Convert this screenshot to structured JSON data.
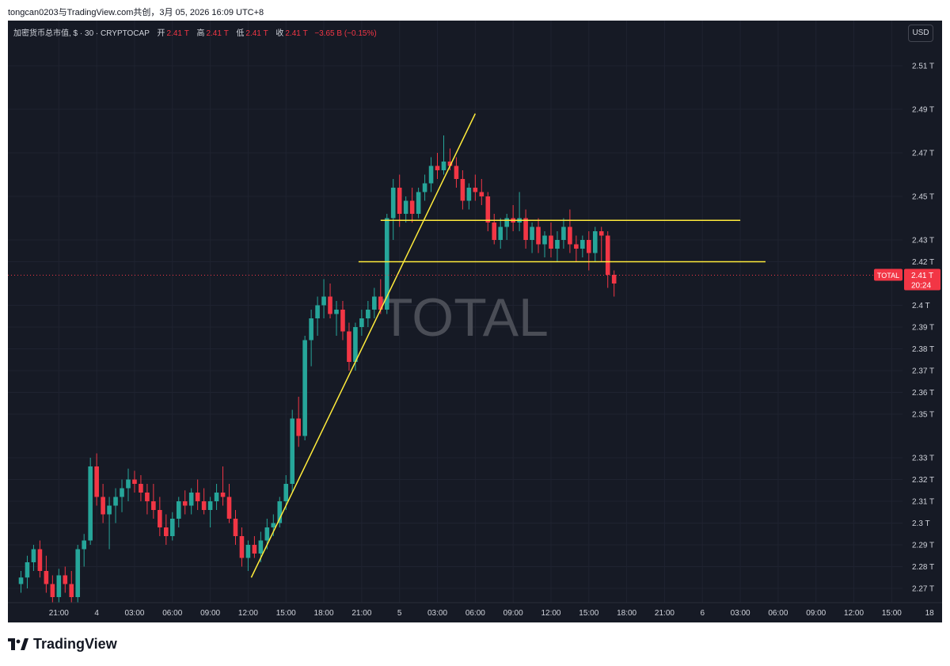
{
  "caption": "tongcan0203与TradingView.com共创，3月 05, 2026 16:09 UTC+8",
  "legend": {
    "symbol": "加密货币总市值, $ · 30 · CRYPTOCAP",
    "open_label": "开",
    "open": "2.41 T",
    "high_label": "高",
    "high": "2.41 T",
    "low_label": "低",
    "low": "2.41 T",
    "close_label": "收",
    "close": "2.41 T",
    "change": "−3.65 B (−0.15%)"
  },
  "currency_button": "USD",
  "watermark": "TOTAL",
  "current_price": {
    "tag": "TOTAL",
    "value": "2.41 T",
    "countdown": "20:24",
    "level": 2.4138
  },
  "brand": "TradingView",
  "colors": {
    "background": "#161a25",
    "up": "#26a69a",
    "down": "#f23645",
    "trendline": "#ffeb3b",
    "axis_text": "#d1d4dc"
  },
  "chart_data": {
    "type": "candlestick",
    "title": "",
    "y_unit": "T",
    "ylim": [
      2.265,
      2.517
    ],
    "y_ticks": [
      {
        "v": 2.51,
        "label": "2.51 T"
      },
      {
        "v": 2.49,
        "label": "2.49 T"
      },
      {
        "v": 2.47,
        "label": "2.47 T"
      },
      {
        "v": 2.45,
        "label": "2.45 T"
      },
      {
        "v": 2.43,
        "label": "2.43 T"
      },
      {
        "v": 2.42,
        "label": "2.42 T"
      },
      {
        "v": 2.4,
        "label": "2.4 T"
      },
      {
        "v": 2.39,
        "label": "2.39 T"
      },
      {
        "v": 2.38,
        "label": "2.38 T"
      },
      {
        "v": 2.37,
        "label": "2.37 T"
      },
      {
        "v": 2.36,
        "label": "2.36 T"
      },
      {
        "v": 2.35,
        "label": "2.35 T"
      },
      {
        "v": 2.33,
        "label": "2.33 T"
      },
      {
        "v": 2.32,
        "label": "2.32 T"
      },
      {
        "v": 2.31,
        "label": "2.31 T"
      },
      {
        "v": 2.3,
        "label": "2.3 T"
      },
      {
        "v": 2.29,
        "label": "2.29 T"
      },
      {
        "v": 2.28,
        "label": "2.28 T"
      },
      {
        "v": 2.27,
        "label": "2.27 T"
      }
    ],
    "interval_minutes": 30,
    "x_start": "3月 3 日 18:00",
    "x_ticks": [
      {
        "i": 6,
        "label": "21:00"
      },
      {
        "i": 12,
        "label": "4"
      },
      {
        "i": 18,
        "label": "03:00"
      },
      {
        "i": 24,
        "label": "06:00"
      },
      {
        "i": 30,
        "label": "09:00"
      },
      {
        "i": 36,
        "label": "12:00"
      },
      {
        "i": 42,
        "label": "15:00"
      },
      {
        "i": 48,
        "label": "18:00"
      },
      {
        "i": 54,
        "label": "21:00"
      },
      {
        "i": 60,
        "label": "5"
      },
      {
        "i": 66,
        "label": "03:00"
      },
      {
        "i": 72,
        "label": "06:00"
      },
      {
        "i": 78,
        "label": "09:00"
      },
      {
        "i": 84,
        "label": "12:00"
      },
      {
        "i": 90,
        "label": "15:00"
      },
      {
        "i": 96,
        "label": "18:00"
      },
      {
        "i": 102,
        "label": "21:00"
      },
      {
        "i": 108,
        "label": "6"
      },
      {
        "i": 114,
        "label": "03:00"
      },
      {
        "i": 120,
        "label": "06:00"
      },
      {
        "i": 126,
        "label": "09:00"
      },
      {
        "i": 132,
        "label": "12:00"
      },
      {
        "i": 138,
        "label": "15:00"
      },
      {
        "i": 144,
        "label": "18"
      }
    ],
    "candles": [
      [
        2.272,
        2.278,
        2.268,
        2.275
      ],
      [
        2.275,
        2.285,
        2.27,
        2.282
      ],
      [
        2.282,
        2.29,
        2.278,
        2.288
      ],
      [
        2.288,
        2.292,
        2.275,
        2.278
      ],
      [
        2.278,
        2.285,
        2.268,
        2.272
      ],
      [
        2.272,
        2.276,
        2.262,
        2.266
      ],
      [
        2.266,
        2.279,
        2.262,
        2.276
      ],
      [
        2.276,
        2.28,
        2.268,
        2.272
      ],
      [
        2.272,
        2.278,
        2.262,
        2.266
      ],
      [
        2.266,
        2.29,
        2.262,
        2.288
      ],
      [
        2.288,
        2.295,
        2.28,
        2.292
      ],
      [
        2.292,
        2.33,
        2.29,
        2.326
      ],
      [
        2.326,
        2.332,
        2.308,
        2.312
      ],
      [
        2.312,
        2.318,
        2.3,
        2.304
      ],
      [
        2.304,
        2.312,
        2.288,
        2.308
      ],
      [
        2.308,
        2.316,
        2.3,
        2.312
      ],
      [
        2.312,
        2.32,
        2.305,
        2.316
      ],
      [
        2.316,
        2.325,
        2.31,
        2.32
      ],
      [
        2.32,
        2.324,
        2.314,
        2.318
      ],
      [
        2.318,
        2.322,
        2.31,
        2.314
      ],
      [
        2.314,
        2.318,
        2.304,
        2.31
      ],
      [
        2.31,
        2.318,
        2.302,
        2.306
      ],
      [
        2.306,
        2.312,
        2.294,
        2.298
      ],
      [
        2.298,
        2.304,
        2.29,
        2.294
      ],
      [
        2.294,
        2.305,
        2.292,
        2.302
      ],
      [
        2.302,
        2.312,
        2.298,
        2.31
      ],
      [
        2.31,
        2.315,
        2.304,
        2.308
      ],
      [
        2.308,
        2.316,
        2.304,
        2.314
      ],
      [
        2.314,
        2.32,
        2.306,
        2.31
      ],
      [
        2.31,
        2.316,
        2.304,
        2.306
      ],
      [
        2.306,
        2.312,
        2.298,
        2.31
      ],
      [
        2.31,
        2.318,
        2.306,
        2.314
      ],
      [
        2.314,
        2.326,
        2.308,
        2.312
      ],
      [
        2.312,
        2.318,
        2.3,
        2.302
      ],
      [
        2.302,
        2.306,
        2.29,
        2.294
      ],
      [
        2.294,
        2.298,
        2.28,
        2.284
      ],
      [
        2.284,
        2.292,
        2.278,
        2.29
      ],
      [
        2.29,
        2.294,
        2.284,
        2.286
      ],
      [
        2.286,
        2.296,
        2.282,
        2.292
      ],
      [
        2.292,
        2.302,
        2.288,
        2.298
      ],
      [
        2.298,
        2.304,
        2.294,
        2.3
      ],
      [
        2.3,
        2.312,
        2.298,
        2.31
      ],
      [
        2.31,
        2.322,
        2.306,
        2.318
      ],
      [
        2.318,
        2.352,
        2.314,
        2.348
      ],
      [
        2.348,
        2.358,
        2.335,
        2.34
      ],
      [
        2.34,
        2.386,
        2.338,
        2.384
      ],
      [
        2.384,
        2.398,
        2.372,
        2.394
      ],
      [
        2.394,
        2.404,
        2.386,
        2.4
      ],
      [
        2.4,
        2.412,
        2.394,
        2.404
      ],
      [
        2.404,
        2.41,
        2.394,
        2.396
      ],
      [
        2.396,
        2.402,
        2.386,
        2.398
      ],
      [
        2.398,
        2.402,
        2.384,
        2.388
      ],
      [
        2.388,
        2.392,
        2.37,
        2.374
      ],
      [
        2.374,
        2.392,
        2.37,
        2.39
      ],
      [
        2.39,
        2.398,
        2.386,
        2.394
      ],
      [
        2.394,
        2.402,
        2.39,
        2.398
      ],
      [
        2.398,
        2.408,
        2.394,
        2.404
      ],
      [
        2.404,
        2.412,
        2.396,
        2.398
      ],
      [
        2.398,
        2.442,
        2.396,
        2.44
      ],
      [
        2.44,
        2.458,
        2.43,
        2.454
      ],
      [
        2.454,
        2.46,
        2.436,
        2.442
      ],
      [
        2.442,
        2.45,
        2.438,
        2.448
      ],
      [
        2.448,
        2.454,
        2.438,
        2.442
      ],
      [
        2.442,
        2.454,
        2.44,
        2.452
      ],
      [
        2.452,
        2.46,
        2.448,
        2.456
      ],
      [
        2.456,
        2.468,
        2.452,
        2.464
      ],
      [
        2.464,
        2.47,
        2.458,
        2.462
      ],
      [
        2.462,
        2.478,
        2.46,
        2.466
      ],
      [
        2.466,
        2.472,
        2.462,
        2.464
      ],
      [
        2.464,
        2.468,
        2.454,
        2.458
      ],
      [
        2.458,
        2.462,
        2.444,
        2.448
      ],
      [
        2.448,
        2.456,
        2.444,
        2.454
      ],
      [
        2.454,
        2.46,
        2.448,
        2.452
      ],
      [
        2.452,
        2.458,
        2.446,
        2.45
      ],
      [
        2.45,
        2.452,
        2.434,
        2.438
      ],
      [
        2.438,
        2.442,
        2.428,
        2.43
      ],
      [
        2.43,
        2.44,
        2.426,
        2.436
      ],
      [
        2.436,
        2.442,
        2.43,
        2.44
      ],
      [
        2.44,
        2.446,
        2.434,
        2.438
      ],
      [
        2.438,
        2.452,
        2.434,
        2.44
      ],
      [
        2.44,
        2.444,
        2.426,
        2.43
      ],
      [
        2.43,
        2.438,
        2.424,
        2.436
      ],
      [
        2.436,
        2.44,
        2.424,
        2.428
      ],
      [
        2.428,
        2.434,
        2.422,
        2.432
      ],
      [
        2.432,
        2.438,
        2.422,
        2.426
      ],
      [
        2.426,
        2.434,
        2.42,
        2.43
      ],
      [
        2.43,
        2.44,
        2.426,
        2.436
      ],
      [
        2.436,
        2.444,
        2.424,
        2.428
      ],
      [
        2.428,
        2.432,
        2.42,
        2.426
      ],
      [
        2.426,
        2.432,
        2.422,
        2.43
      ],
      [
        2.43,
        2.434,
        2.416,
        2.424
      ],
      [
        2.424,
        2.436,
        2.42,
        2.434
      ],
      [
        2.434,
        2.436,
        2.42,
        2.432
      ],
      [
        2.432,
        2.434,
        2.408,
        2.414
      ],
      [
        2.414,
        2.416,
        2.404,
        2.41
      ]
    ],
    "drawings": [
      {
        "type": "trendline",
        "from": [
          36.5,
          2.275
        ],
        "to": [
          72.0,
          2.488
        ]
      },
      {
        "type": "horizontal",
        "from": [
          57.0,
          2.439
        ],
        "to": [
          114.0,
          2.439
        ]
      },
      {
        "type": "horizontal",
        "from": [
          53.5,
          2.42
        ],
        "to": [
          118.0,
          2.42
        ]
      }
    ]
  }
}
